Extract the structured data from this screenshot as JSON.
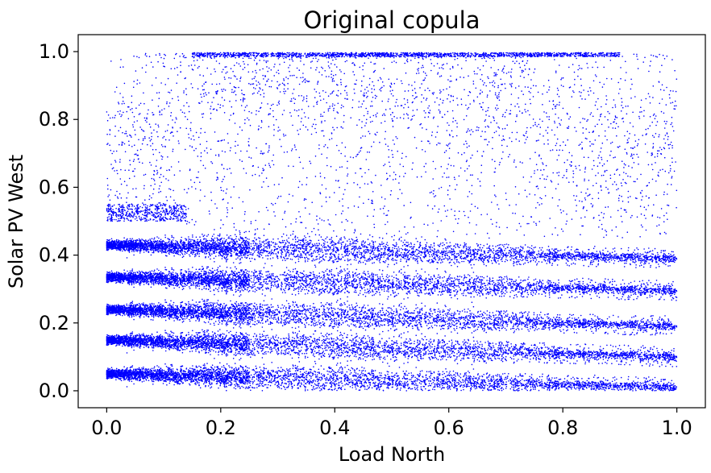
{
  "chart_data": {
    "type": "scatter",
    "title": "Original copula",
    "xlabel": "Load North",
    "ylabel": "Solar PV West",
    "xlim": [
      -0.05,
      1.05
    ],
    "ylim": [
      -0.05,
      1.05
    ],
    "xticks": [
      "0.0",
      "0.2",
      "0.4",
      "0.6",
      "0.8",
      "1.0"
    ],
    "yticks": [
      "0.0",
      "0.2",
      "0.4",
      "0.6",
      "0.8",
      "1.0"
    ],
    "xtick_values": [
      0.0,
      0.2,
      0.4,
      0.6,
      0.8,
      1.0
    ],
    "ytick_values": [
      0.0,
      0.2,
      0.4,
      0.6,
      0.8,
      1.0
    ],
    "grid": false,
    "marker_color": "#0000ff",
    "bands": [
      {
        "y_start": 0.05,
        "y_end": 0.01,
        "x_min": 0.0,
        "x_max": 1.0
      },
      {
        "y_start": 0.15,
        "y_end": 0.1,
        "x_min": 0.0,
        "x_max": 1.0
      },
      {
        "y_start": 0.24,
        "y_end": 0.19,
        "x_min": 0.0,
        "x_max": 1.0
      },
      {
        "y_start": 0.335,
        "y_end": 0.295,
        "x_min": 0.0,
        "x_max": 1.0
      },
      {
        "y_start": 0.43,
        "y_end": 0.39,
        "x_min": 0.0,
        "x_max": 1.0
      }
    ],
    "upper_cloud": {
      "x_min": 0.0,
      "x_max": 1.0,
      "y_min": 0.45,
      "y_max": 1.0,
      "dense_center_x": 0.55,
      "dense_center_y": 0.9
    }
  }
}
